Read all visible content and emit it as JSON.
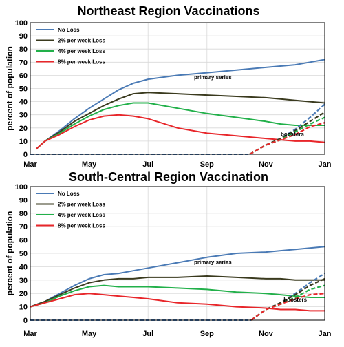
{
  "chart_data": [
    {
      "type": "line",
      "title": "Northeast Region Vaccinations",
      "ylabel": "percent of population",
      "xlabel": "",
      "ylim": [
        0,
        100
      ],
      "yticks": [
        0,
        10,
        20,
        30,
        40,
        50,
        60,
        70,
        80,
        90,
        100
      ],
      "xticks": [
        {
          "label": "Mar",
          "x": 0
        },
        {
          "label": "May",
          "x": 2
        },
        {
          "label": "Jul",
          "x": 4
        },
        {
          "label": "Sep",
          "x": 6
        },
        {
          "label": "Nov",
          "x": 8
        },
        {
          "label": "Jan",
          "x": 10
        }
      ],
      "xlim": [
        0,
        10
      ],
      "grid": true,
      "legend": "top-left",
      "annotations": [
        {
          "text": "primary series",
          "x": 6.2,
          "y": 57
        },
        {
          "text": "boosters",
          "x": 8.9,
          "y": 14
        }
      ],
      "series": [
        {
          "name": "No Loss",
          "color": "#4a7ab5",
          "x": [
            0.2,
            0.5,
            1,
            1.5,
            2,
            2.5,
            3,
            3.5,
            4,
            5,
            6,
            7,
            8,
            8.5,
            9,
            9.5,
            10
          ],
          "y": [
            4,
            10,
            18,
            27,
            35,
            42,
            49,
            54,
            57,
            60,
            62,
            64,
            66,
            67,
            68,
            70,
            72
          ]
        },
        {
          "name": "2% per week Loss",
          "color": "#3a3a1e",
          "x": [
            0.2,
            0.5,
            1,
            1.5,
            2,
            2.5,
            3,
            3.5,
            4,
            5,
            6,
            7,
            8,
            8.5,
            9,
            9.5,
            10
          ],
          "y": [
            4,
            10,
            17,
            25,
            31,
            37,
            42,
            46,
            47,
            46,
            45,
            44,
            43,
            42,
            41,
            40,
            39
          ]
        },
        {
          "name": "4% per week Loss",
          "color": "#22b04a",
          "x": [
            0.2,
            0.5,
            1,
            1.5,
            2,
            2.5,
            3,
            3.5,
            4,
            5,
            6,
            7,
            8,
            8.5,
            9,
            9.5,
            10
          ],
          "y": [
            4,
            10,
            16,
            23,
            29,
            34,
            37,
            39,
            39,
            35,
            31,
            28,
            25,
            23,
            22,
            22,
            22
          ]
        },
        {
          "name": "8% per week Loss",
          "color": "#e8262a",
          "x": [
            0.2,
            0.5,
            1,
            1.5,
            2,
            2.5,
            3,
            3.5,
            4,
            5,
            6,
            7,
            8,
            8.5,
            9,
            9.5,
            10
          ],
          "y": [
            4,
            10,
            15,
            21,
            26,
            29,
            30,
            29,
            27,
            20,
            16,
            14,
            12,
            11,
            10,
            10,
            9
          ]
        }
      ],
      "boosters": [
        {
          "color": "#4a7ab5",
          "x": [
            7.45,
            8,
            8.5,
            9,
            9.5,
            10
          ],
          "y": [
            0,
            7,
            12,
            19,
            28,
            38
          ]
        },
        {
          "color": "#3a3a1e",
          "x": [
            7.45,
            8,
            8.5,
            9,
            9.5,
            10
          ],
          "y": [
            0,
            7,
            12,
            18,
            25,
            32
          ]
        },
        {
          "color": "#22b04a",
          "x": [
            7.45,
            8,
            8.5,
            9,
            9.5,
            10
          ],
          "y": [
            0,
            7,
            11,
            17,
            23,
            28
          ]
        },
        {
          "color": "#e8262a",
          "x": [
            7.45,
            8,
            8.5,
            9,
            9.5,
            10
          ],
          "y": [
            0,
            7,
            11,
            15,
            21,
            24
          ]
        }
      ]
    },
    {
      "type": "line",
      "title": "South-Central Region Vaccination",
      "ylabel": "percent of population",
      "xlabel": "",
      "ylim": [
        0,
        100
      ],
      "yticks": [
        0,
        10,
        20,
        30,
        40,
        50,
        60,
        70,
        80,
        90,
        100
      ],
      "xticks": [
        {
          "label": "Mar",
          "x": 0
        },
        {
          "label": "May",
          "x": 2
        },
        {
          "label": "Jul",
          "x": 4
        },
        {
          "label": "Sep",
          "x": 6
        },
        {
          "label": "Nov",
          "x": 8
        },
        {
          "label": "Jan",
          "x": 10
        }
      ],
      "xlim": [
        0,
        10
      ],
      "grid": true,
      "legend": "top-left",
      "annotations": [
        {
          "text": "primary series",
          "x": 6.2,
          "y": 42
        },
        {
          "text": "boosters",
          "x": 9.0,
          "y": 14
        }
      ],
      "series": [
        {
          "name": "No Loss",
          "color": "#4a7ab5",
          "x": [
            0,
            0.5,
            1,
            1.5,
            2,
            2.5,
            3,
            3.5,
            4,
            5,
            6,
            7,
            8,
            8.5,
            9,
            9.5,
            10
          ],
          "y": [
            10,
            14,
            20,
            26,
            31,
            34,
            35,
            37,
            39,
            43,
            47,
            50,
            51,
            52,
            53,
            54,
            55
          ]
        },
        {
          "name": "2% per week Loss",
          "color": "#3a3a1e",
          "x": [
            0,
            0.5,
            1,
            1.5,
            2,
            2.5,
            3,
            3.5,
            4,
            5,
            6,
            7,
            8,
            8.5,
            9,
            9.5,
            10
          ],
          "y": [
            10,
            14,
            19,
            24,
            28,
            30,
            31,
            31,
            32,
            32,
            33,
            32,
            31,
            31,
            30,
            30,
            30
          ]
        },
        {
          "name": "4% per week Loss",
          "color": "#22b04a",
          "x": [
            0,
            0.5,
            1,
            1.5,
            2,
            2.5,
            3,
            3.5,
            4,
            5,
            6,
            7,
            8,
            8.5,
            9,
            9.5,
            10
          ],
          "y": [
            10,
            13,
            18,
            22,
            25,
            26,
            25,
            25,
            25,
            24,
            23,
            21,
            20,
            19,
            18,
            17,
            17
          ]
        },
        {
          "name": "8% per week Loss",
          "color": "#e8262a",
          "x": [
            0,
            0.5,
            1,
            1.5,
            2,
            2.5,
            3,
            3.5,
            4,
            5,
            6,
            7,
            8,
            8.5,
            9,
            9.5,
            10
          ],
          "y": [
            10,
            13,
            16,
            19,
            20,
            19,
            18,
            17,
            16,
            13,
            12,
            10,
            9,
            8,
            8,
            7,
            7
          ]
        }
      ],
      "boosters": [
        {
          "color": "#4a7ab5",
          "x": [
            7.5,
            8,
            8.5,
            9,
            9.5,
            10
          ],
          "y": [
            0,
            8,
            13,
            20,
            28,
            35
          ]
        },
        {
          "color": "#3a3a1e",
          "x": [
            7.5,
            8,
            8.5,
            9,
            9.5,
            10
          ],
          "y": [
            0,
            8,
            13,
            19,
            26,
            31
          ]
        },
        {
          "color": "#22b04a",
          "x": [
            7.5,
            8,
            8.5,
            9,
            9.5,
            10
          ],
          "y": [
            0,
            8,
            12,
            17,
            23,
            26
          ]
        },
        {
          "color": "#e8262a",
          "x": [
            7.5,
            8,
            8.5,
            9,
            9.5,
            10
          ],
          "y": [
            0,
            8,
            12,
            16,
            19,
            20
          ]
        }
      ]
    }
  ]
}
